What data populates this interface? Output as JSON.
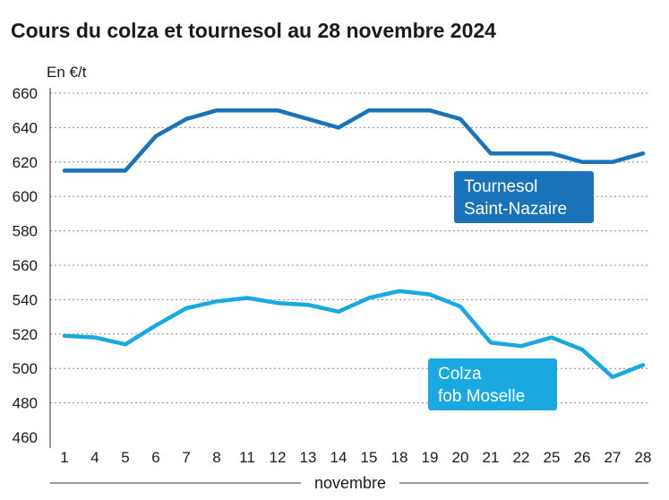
{
  "chart_data": {
    "type": "line",
    "title": "Cours du colza et tournesol au 28 novembre 2024",
    "ylabel": "En €/t",
    "xlabel": "novembre",
    "ylim": [
      460,
      660
    ],
    "yticks": [
      460,
      480,
      500,
      520,
      540,
      560,
      580,
      600,
      620,
      640,
      660
    ],
    "categories": [
      "1",
      "4",
      "5",
      "6",
      "7",
      "8",
      "11",
      "12",
      "13",
      "14",
      "15",
      "18",
      "19",
      "20",
      "21",
      "22",
      "25",
      "26",
      "27",
      "28"
    ],
    "grid": true,
    "series": [
      {
        "name_lines": [
          "Tournesol",
          "Saint-Nazaire"
        ],
        "color": "#1a72b8",
        "values": [
          615,
          615,
          615,
          635,
          645,
          650,
          650,
          650,
          645,
          640,
          650,
          650,
          650,
          645,
          625,
          625,
          625,
          620,
          620,
          625
        ]
      },
      {
        "name_lines": [
          "Colza",
          "fob Moselle"
        ],
        "color": "#1aa8e0",
        "values": [
          519,
          518,
          514,
          525,
          535,
          539,
          541,
          538,
          537,
          533,
          541,
          545,
          543,
          536,
          515,
          513,
          518,
          511,
          495,
          502
        ]
      }
    ]
  }
}
